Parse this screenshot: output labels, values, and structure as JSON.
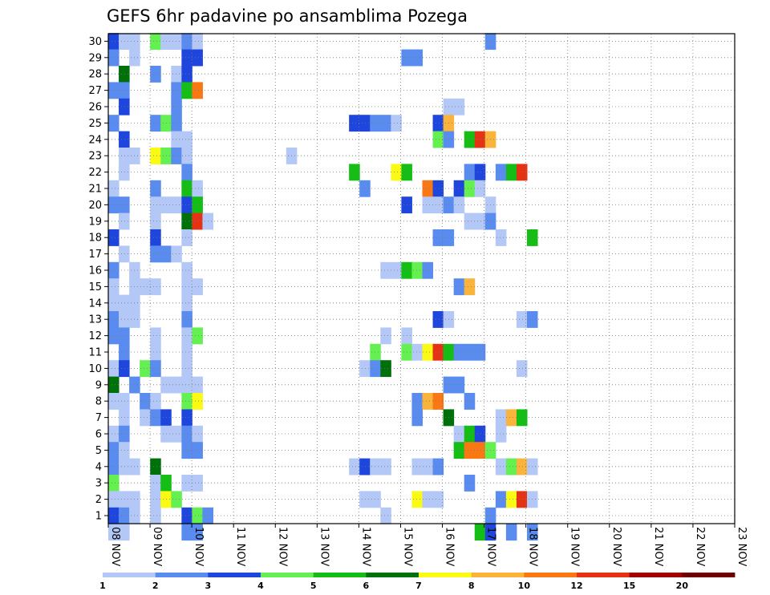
{
  "chart_data": {
    "type": "heatmap",
    "title": "GEFS 6hr padavine po ansamblima Pozega",
    "xlabel": "",
    "ylabel": "",
    "x_ticks": [
      "08 NOV",
      "09 NOV",
      "10 NOV",
      "11 NOV",
      "12 NOV",
      "13 NOV",
      "14 NOV",
      "15 NOV",
      "16 NOV",
      "17 NOV",
      "18 NOV",
      "19 NOV",
      "20 NOV",
      "21 NOV",
      "22 NOV",
      "23 NOV"
    ],
    "y_ticks": [
      1,
      2,
      3,
      4,
      5,
      6,
      7,
      8,
      9,
      10,
      11,
      12,
      13,
      14,
      15,
      16,
      17,
      18,
      19,
      20,
      21,
      22,
      23,
      24,
      25,
      26,
      27,
      28,
      29,
      30
    ],
    "grid": true,
    "colors": {
      "c1": "#b4c8f8",
      "c2": "#5a8cf0",
      "c3": "#1e46dc",
      "c4": "#64f050",
      "c5": "#14be14",
      "c6": "#00700a",
      "c7": "#fafa14",
      "c8": "#fab43c",
      "c10": "#fa7814",
      "c12": "#e63214",
      "c15": "#a00000",
      "c20": "#6e0000"
    },
    "legend": {
      "levels": [
        "1",
        "2",
        "3",
        "4",
        "5",
        "6",
        "7",
        "8",
        "10",
        "12",
        "15",
        "20"
      ],
      "colors": [
        "#b4c8f8",
        "#5a8cf0",
        "#1e46dc",
        "#64f050",
        "#14be14",
        "#00700a",
        "#fafa14",
        "#fab43c",
        "#fa7814",
        "#e63214",
        "#a00000",
        "#6e0000"
      ]
    },
    "cells": [
      [
        0,
        30,
        3
      ],
      [
        1,
        30,
        1
      ],
      [
        2,
        30,
        1
      ],
      [
        4,
        30,
        4
      ],
      [
        5,
        30,
        1
      ],
      [
        6,
        30,
        1
      ],
      [
        7,
        30,
        2
      ],
      [
        8,
        30,
        1
      ],
      [
        36,
        30,
        2
      ],
      [
        0,
        29,
        2
      ],
      [
        2,
        29,
        1
      ],
      [
        7,
        29,
        3
      ],
      [
        8,
        29,
        3
      ],
      [
        28,
        29,
        2
      ],
      [
        29,
        29,
        2
      ],
      [
        1,
        28,
        6
      ],
      [
        4,
        28,
        2
      ],
      [
        6,
        28,
        1
      ],
      [
        7,
        28,
        3
      ],
      [
        0,
        27,
        2
      ],
      [
        1,
        27,
        2
      ],
      [
        6,
        27,
        2
      ],
      [
        7,
        27,
        5
      ],
      [
        8,
        27,
        10
      ],
      [
        1,
        26,
        3
      ],
      [
        6,
        26,
        2
      ],
      [
        32,
        26,
        1
      ],
      [
        33,
        26,
        1
      ],
      [
        0,
        25,
        2
      ],
      [
        4,
        25,
        2
      ],
      [
        5,
        25,
        4
      ],
      [
        6,
        25,
        2
      ],
      [
        23,
        25,
        3
      ],
      [
        24,
        25,
        3
      ],
      [
        25,
        25,
        2
      ],
      [
        26,
        25,
        2
      ],
      [
        27,
        25,
        1
      ],
      [
        31,
        25,
        3
      ],
      [
        32,
        25,
        8
      ],
      [
        1,
        24,
        3
      ],
      [
        6,
        24,
        1
      ],
      [
        7,
        24,
        1
      ],
      [
        31,
        24,
        4
      ],
      [
        32,
        24,
        2
      ],
      [
        34,
        24,
        5
      ],
      [
        35,
        24,
        12
      ],
      [
        36,
        24,
        8
      ],
      [
        1,
        23,
        1
      ],
      [
        2,
        23,
        1
      ],
      [
        4,
        23,
        7
      ],
      [
        5,
        23,
        4
      ],
      [
        6,
        23,
        2
      ],
      [
        7,
        23,
        1
      ],
      [
        17,
        23,
        1
      ],
      [
        1,
        22,
        1
      ],
      [
        7,
        22,
        2
      ],
      [
        23,
        22,
        5
      ],
      [
        27,
        22,
        7
      ],
      [
        28,
        22,
        5
      ],
      [
        34,
        22,
        2
      ],
      [
        35,
        22,
        3
      ],
      [
        37,
        22,
        2
      ],
      [
        38,
        22,
        5
      ],
      [
        39,
        22,
        12
      ],
      [
        0,
        21,
        1
      ],
      [
        4,
        21,
        2
      ],
      [
        7,
        21,
        5
      ],
      [
        8,
        21,
        1
      ],
      [
        24,
        21,
        2
      ],
      [
        30,
        21,
        10
      ],
      [
        31,
        21,
        3
      ],
      [
        33,
        21,
        3
      ],
      [
        34,
        21,
        4
      ],
      [
        35,
        21,
        1
      ],
      [
        0,
        20,
        2
      ],
      [
        1,
        20,
        2
      ],
      [
        4,
        20,
        1
      ],
      [
        5,
        20,
        1
      ],
      [
        6,
        20,
        1
      ],
      [
        7,
        20,
        3
      ],
      [
        8,
        20,
        5
      ],
      [
        28,
        20,
        3
      ],
      [
        30,
        20,
        1
      ],
      [
        31,
        20,
        1
      ],
      [
        32,
        20,
        2
      ],
      [
        33,
        20,
        1
      ],
      [
        36,
        20,
        1
      ],
      [
        1,
        19,
        1
      ],
      [
        4,
        19,
        1
      ],
      [
        7,
        19,
        6
      ],
      [
        8,
        19,
        12
      ],
      [
        9,
        19,
        1
      ],
      [
        34,
        19,
        1
      ],
      [
        35,
        19,
        1
      ],
      [
        36,
        19,
        2
      ],
      [
        0,
        18,
        3
      ],
      [
        4,
        18,
        3
      ],
      [
        7,
        18,
        1
      ],
      [
        31,
        18,
        2
      ],
      [
        32,
        18,
        2
      ],
      [
        37,
        18,
        1
      ],
      [
        40,
        18,
        5
      ],
      [
        1,
        17,
        1
      ],
      [
        4,
        17,
        2
      ],
      [
        5,
        17,
        2
      ],
      [
        6,
        17,
        1
      ],
      [
        0,
        16,
        2
      ],
      [
        2,
        16,
        1
      ],
      [
        7,
        16,
        1
      ],
      [
        26,
        16,
        1
      ],
      [
        27,
        16,
        1
      ],
      [
        28,
        16,
        5
      ],
      [
        29,
        16,
        4
      ],
      [
        30,
        16,
        2
      ],
      [
        0,
        15,
        1
      ],
      [
        2,
        15,
        1
      ],
      [
        3,
        15,
        1
      ],
      [
        4,
        15,
        1
      ],
      [
        7,
        15,
        1
      ],
      [
        8,
        15,
        1
      ],
      [
        33,
        15,
        2
      ],
      [
        34,
        15,
        8
      ],
      [
        0,
        14,
        1
      ],
      [
        1,
        14,
        1
      ],
      [
        2,
        14,
        1
      ],
      [
        7,
        14,
        1
      ],
      [
        0,
        13,
        2
      ],
      [
        1,
        13,
        1
      ],
      [
        2,
        13,
        1
      ],
      [
        7,
        13,
        2
      ],
      [
        31,
        13,
        3
      ],
      [
        32,
        13,
        1
      ],
      [
        39,
        13,
        1
      ],
      [
        40,
        13,
        2
      ],
      [
        0,
        12,
        2
      ],
      [
        1,
        12,
        2
      ],
      [
        4,
        12,
        1
      ],
      [
        7,
        12,
        1
      ],
      [
        8,
        12,
        4
      ],
      [
        26,
        12,
        1
      ],
      [
        28,
        12,
        1
      ],
      [
        1,
        11,
        2
      ],
      [
        4,
        11,
        1
      ],
      [
        7,
        11,
        1
      ],
      [
        25,
        11,
        4
      ],
      [
        28,
        11,
        4
      ],
      [
        29,
        11,
        1
      ],
      [
        30,
        11,
        7
      ],
      [
        31,
        11,
        12
      ],
      [
        32,
        11,
        5
      ],
      [
        33,
        11,
        2
      ],
      [
        34,
        11,
        2
      ],
      [
        35,
        11,
        2
      ],
      [
        0,
        10,
        1
      ],
      [
        1,
        10,
        3
      ],
      [
        3,
        10,
        4
      ],
      [
        4,
        10,
        2
      ],
      [
        7,
        10,
        1
      ],
      [
        24,
        10,
        1
      ],
      [
        25,
        10,
        2
      ],
      [
        26,
        10,
        6
      ],
      [
        39,
        10,
        1
      ],
      [
        0,
        9,
        6
      ],
      [
        2,
        9,
        2
      ],
      [
        5,
        9,
        1
      ],
      [
        6,
        9,
        1
      ],
      [
        7,
        9,
        1
      ],
      [
        8,
        9,
        1
      ],
      [
        32,
        9,
        2
      ],
      [
        33,
        9,
        2
      ],
      [
        0,
        8,
        1
      ],
      [
        1,
        8,
        1
      ],
      [
        3,
        8,
        2
      ],
      [
        4,
        8,
        1
      ],
      [
        7,
        8,
        4
      ],
      [
        8,
        8,
        7
      ],
      [
        29,
        8,
        2
      ],
      [
        30,
        8,
        8
      ],
      [
        31,
        8,
        10
      ],
      [
        34,
        8,
        2
      ],
      [
        1,
        7,
        1
      ],
      [
        3,
        7,
        1
      ],
      [
        4,
        7,
        2
      ],
      [
        5,
        7,
        3
      ],
      [
        7,
        7,
        3
      ],
      [
        29,
        7,
        2
      ],
      [
        32,
        7,
        6
      ],
      [
        37,
        7,
        1
      ],
      [
        38,
        7,
        8
      ],
      [
        39,
        7,
        5
      ],
      [
        0,
        6,
        1
      ],
      [
        1,
        6,
        2
      ],
      [
        5,
        6,
        1
      ],
      [
        6,
        6,
        1
      ],
      [
        7,
        6,
        2
      ],
      [
        8,
        6,
        1
      ],
      [
        33,
        6,
        1
      ],
      [
        34,
        6,
        5
      ],
      [
        35,
        6,
        3
      ],
      [
        37,
        6,
        1
      ],
      [
        0,
        5,
        2
      ],
      [
        1,
        5,
        1
      ],
      [
        7,
        5,
        2
      ],
      [
        8,
        5,
        2
      ],
      [
        33,
        5,
        5
      ],
      [
        34,
        5,
        10
      ],
      [
        35,
        5,
        10
      ],
      [
        36,
        5,
        4
      ],
      [
        0,
        4,
        2
      ],
      [
        1,
        4,
        1
      ],
      [
        2,
        4,
        1
      ],
      [
        4,
        4,
        6
      ],
      [
        23,
        4,
        1
      ],
      [
        24,
        4,
        3
      ],
      [
        25,
        4,
        1
      ],
      [
        26,
        4,
        1
      ],
      [
        29,
        4,
        1
      ],
      [
        30,
        4,
        1
      ],
      [
        31,
        4,
        2
      ],
      [
        37,
        4,
        1
      ],
      [
        38,
        4,
        4
      ],
      [
        39,
        4,
        8
      ],
      [
        40,
        4,
        1
      ],
      [
        0,
        3,
        4
      ],
      [
        4,
        3,
        1
      ],
      [
        5,
        3,
        5
      ],
      [
        7,
        3,
        1
      ],
      [
        8,
        3,
        1
      ],
      [
        34,
        3,
        2
      ],
      [
        0,
        2,
        1
      ],
      [
        1,
        2,
        1
      ],
      [
        2,
        2,
        1
      ],
      [
        4,
        2,
        1
      ],
      [
        5,
        2,
        7
      ],
      [
        6,
        2,
        4
      ],
      [
        24,
        2,
        1
      ],
      [
        25,
        2,
        1
      ],
      [
        29,
        2,
        7
      ],
      [
        30,
        2,
        1
      ],
      [
        31,
        2,
        1
      ],
      [
        37,
        2,
        2
      ],
      [
        38,
        2,
        7
      ],
      [
        39,
        2,
        12
      ],
      [
        40,
        2,
        1
      ],
      [
        0,
        1,
        3
      ],
      [
        1,
        1,
        2
      ],
      [
        2,
        1,
        1
      ],
      [
        4,
        1,
        1
      ],
      [
        7,
        1,
        3
      ],
      [
        8,
        1,
        4
      ],
      [
        9,
        1,
        2
      ],
      [
        26,
        1,
        1
      ],
      [
        36,
        1,
        2
      ],
      [
        0,
        0,
        1
      ],
      [
        1,
        0,
        1
      ],
      [
        7,
        0,
        2
      ],
      [
        8,
        0,
        2
      ],
      [
        35,
        0,
        5
      ],
      [
        36,
        0,
        3
      ],
      [
        38,
        0,
        2
      ],
      [
        40,
        0,
        2
      ]
    ]
  }
}
